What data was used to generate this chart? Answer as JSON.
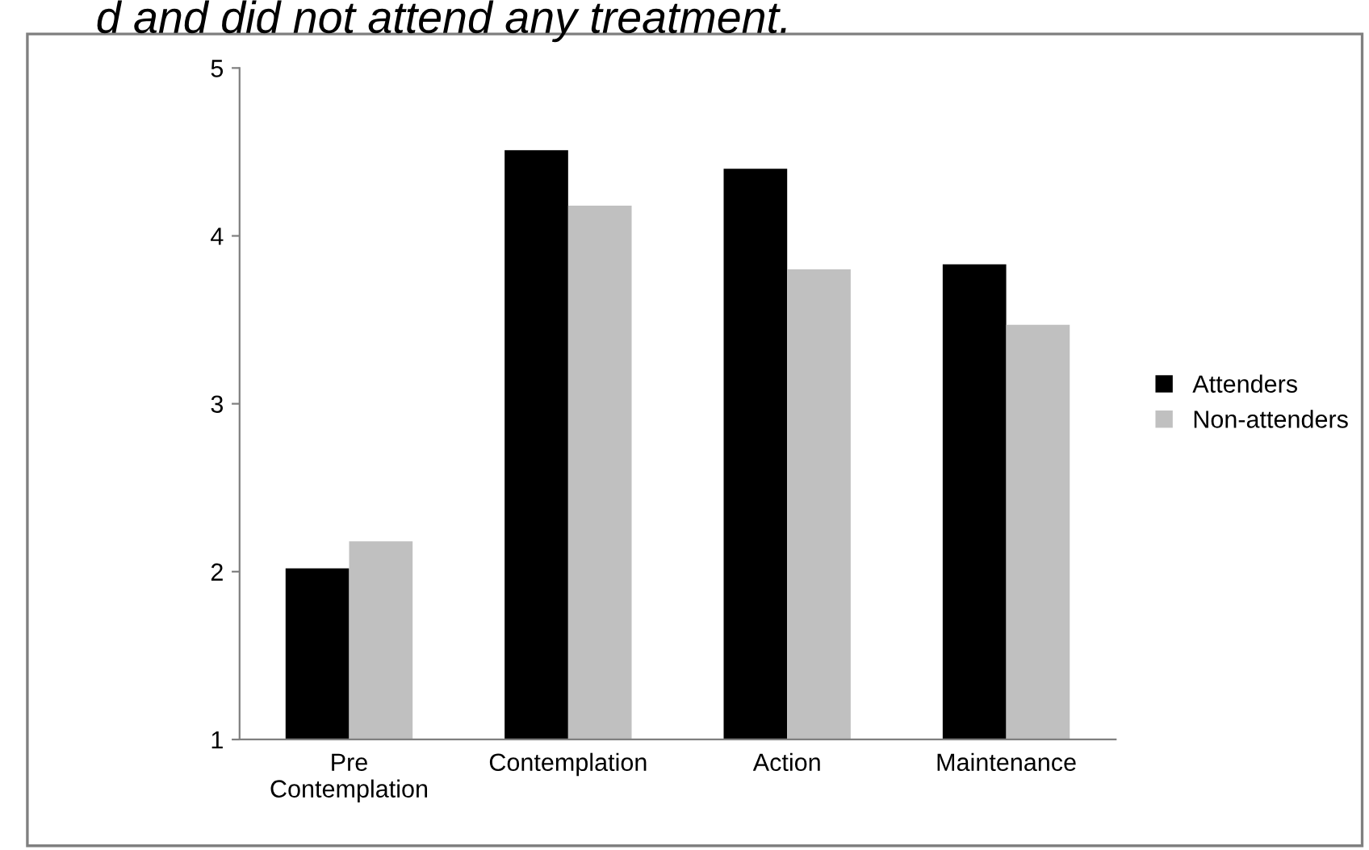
{
  "chart_data": {
    "type": "bar",
    "title": "d and did not attend any treatment.",
    "categories": [
      "Pre\nContemplation",
      "Contemplation",
      "Action",
      "Maintenance"
    ],
    "series": [
      {
        "name": "Attenders",
        "color": "#000000",
        "values": [
          2.02,
          4.51,
          4.4,
          3.83
        ]
      },
      {
        "name": "Non-attenders",
        "color": "#c0c0c0",
        "values": [
          2.18,
          4.18,
          3.8,
          3.47
        ]
      }
    ],
    "ylim": [
      1,
      5
    ],
    "yticks": [
      1,
      2,
      3,
      4,
      5
    ],
    "grid": false,
    "legend": "right"
  }
}
